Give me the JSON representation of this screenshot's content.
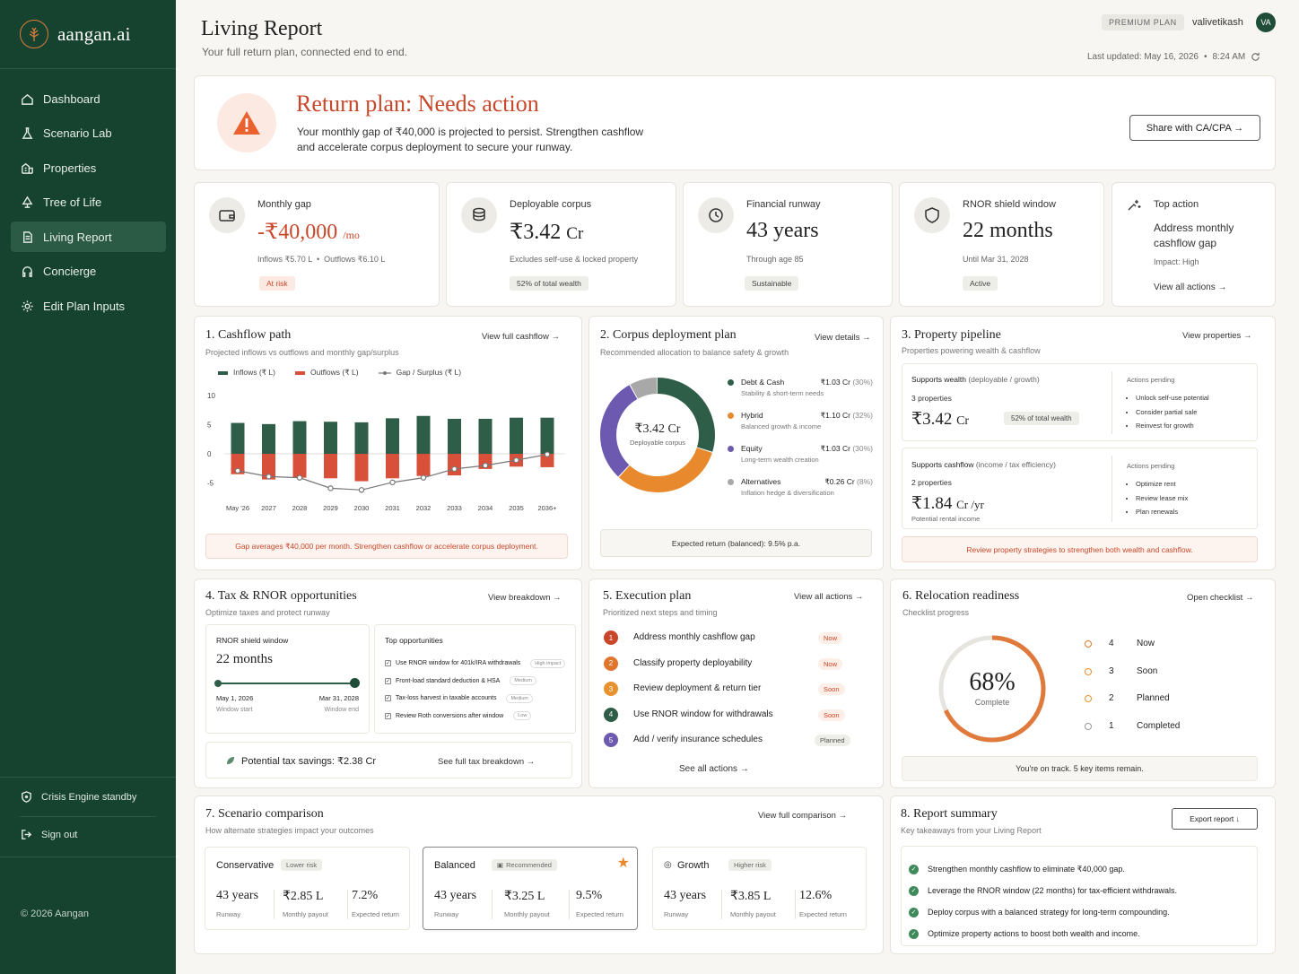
{
  "app": {
    "name": "aangan.ai",
    "copyright": "© 2026 Aangan"
  },
  "nav": [
    {
      "label": "Dashboard",
      "icon": "dashboard-icon"
    },
    {
      "label": "Scenario Lab",
      "icon": "flask-icon"
    },
    {
      "label": "Properties",
      "icon": "building-icon"
    },
    {
      "label": "Tree of Life",
      "icon": "tree-icon"
    },
    {
      "label": "Living Report",
      "icon": "report-icon",
      "active": true
    },
    {
      "label": "Concierge",
      "icon": "headset-icon"
    },
    {
      "label": "Edit Plan Inputs",
      "icon": "gear-icon"
    }
  ],
  "sidebar_bottom": {
    "crisis": "Crisis Engine standby",
    "signout": "Sign out"
  },
  "header": {
    "title": "Living Report",
    "subtitle": "Your full return plan, connected end to end.",
    "plan_badge": "PREMIUM PLAN",
    "username": "valivetikash",
    "avatar": "VA",
    "updated_label": "Last updated: May 16, 2026",
    "updated_sep": "•",
    "updated_time": "8:24 AM"
  },
  "banner": {
    "title": "Return plan: Needs action",
    "text_line1": "Your monthly gap of ₹40,000 is projected to persist. Strengthen cashflow",
    "text_line2": "and accelerate corpus deployment to secure your runway.",
    "share_button": "Share with CA/CPA →"
  },
  "kpis": {
    "gap": {
      "label": "Monthly gap",
      "value": "-₹40,000",
      "unit": "/mo",
      "inflows": "Inflows ₹5.70 L",
      "sep": "•",
      "outflows": "Outflows ₹6.10 L",
      "badge": "At risk"
    },
    "corpus": {
      "label": "Deployable corpus",
      "value": "₹3.42",
      "unit": "Cr",
      "note": "Excludes self-use & locked property",
      "badge": "52% of total wealth"
    },
    "runway": {
      "label": "Financial runway",
      "value": "43 years",
      "note": "Through age 85",
      "badge": "Sustainable"
    },
    "rnor": {
      "label": "RNOR shield window",
      "value": "22 months",
      "note": "Until Mar 31, 2028",
      "badge": "Active"
    },
    "top": {
      "label": "Top action",
      "line1": "Address monthly",
      "line2": "cashflow gap",
      "impact": "Impact: High",
      "link": "View all actions →"
    }
  },
  "cashflow": {
    "title": "1. Cashflow path",
    "subtitle": "Projected inflows vs outflows and monthly gap/surplus",
    "link": "View full cashflow →",
    "legend": [
      "Inflows (₹ L)",
      "Outflows (₹ L)",
      "Gap / Surplus (₹ L)"
    ],
    "note": "Gap averages ₹40,000 per month. Strengthen cashflow or accelerate corpus deployment."
  },
  "chart_data": {
    "type": "bar",
    "categories": [
      "May '26",
      "2027",
      "2028",
      "2029",
      "2030",
      "2031",
      "2032",
      "2033",
      "2034",
      "2035",
      "2036+"
    ],
    "yticks": [
      10,
      5,
      0,
      -5
    ],
    "ylim": [
      -6,
      10
    ],
    "series": [
      {
        "name": "Inflows (₹ L)",
        "type": "bar",
        "color": "#2f5e48",
        "values": [
          5.3,
          5.1,
          5.6,
          5.5,
          5.4,
          6.1,
          6.5,
          6.0,
          6.0,
          6.2,
          6.2
        ]
      },
      {
        "name": "Outflows (₹ L)",
        "type": "bar",
        "color": "#d9503a",
        "values": [
          -3.5,
          -4.4,
          -4.1,
          -4.2,
          -4.7,
          -4.2,
          -3.8,
          -3.7,
          -2.6,
          -2.2,
          -2.3
        ]
      },
      {
        "name": "Gap / Surplus (₹ L)",
        "type": "line",
        "color": "#777777",
        "values": [
          -2.9,
          -3.9,
          -4.1,
          -5.9,
          -6.2,
          -4.9,
          -4.1,
          -2.6,
          -2.0,
          -1.1,
          -0.1
        ]
      }
    ]
  },
  "corpus": {
    "title": "2. Corpus deployment plan",
    "subtitle": "Recommended allocation to balance safety & growth",
    "link": "View details →",
    "center_value": "₹3.42 Cr",
    "center_label": "Deployable corpus",
    "items": [
      {
        "name": "Debt & Cash",
        "value": "₹1.03 Cr",
        "pct": "(30%)",
        "desc": "Stability & short-term needs",
        "color": "#2f5e48"
      },
      {
        "name": "Hybrid",
        "value": "₹1.10 Cr",
        "pct": "(32%)",
        "desc": "Balanced growth & income",
        "color": "#e8892d"
      },
      {
        "name": "Equity",
        "value": "₹1.03 Cr",
        "pct": "(30%)",
        "desc": "Long-term wealth creation",
        "color": "#6d5ab0"
      },
      {
        "name": "Alternatives",
        "value": "₹0.26 Cr",
        "pct": "(8%)",
        "desc": "Inflation hedge & diversification",
        "color": "#a8a8a8"
      }
    ],
    "footer": "Expected return (balanced): 9.5% p.a."
  },
  "property": {
    "title": "3. Property pipeline",
    "subtitle": "Properties powering wealth & cashflow",
    "link": "View properties →",
    "wealth": {
      "title": "Supports wealth",
      "title_sub": "(deployable / growth)",
      "count": "3 properties",
      "value": "₹3.42",
      "unit": "Cr",
      "badge": "52% of total wealth",
      "actions_title": "Actions pending",
      "actions": [
        "Unlock self-use potential",
        "Consider partial sale",
        "Reinvest for growth"
      ]
    },
    "cash": {
      "title": "Supports cashflow",
      "title_sub": "(income / tax efficiency)",
      "count": "2 properties",
      "value": "₹1.84",
      "unit": "Cr /yr",
      "note": "Potential rental income",
      "actions_title": "Actions pending",
      "actions": [
        "Optimize rent",
        "Review lease mix",
        "Plan renewals"
      ]
    },
    "footer": "Review property strategies to strengthen both wealth and cashflow."
  },
  "tax": {
    "title": "4. Tax & RNOR opportunities",
    "subtitle": "Optimize taxes and protect runway",
    "link": "View breakdown →",
    "rnor_label": "RNOR shield window",
    "rnor_value": "22 months",
    "rnor_progress": 1.0,
    "start_date": "May 1, 2026",
    "start_label": "Window start",
    "end_date": "Mar 31, 2028",
    "end_label": "Window end",
    "opps_title": "Top opportunities",
    "opps": [
      {
        "text": "Use RNOR window for 401k/IRA withdrawals",
        "tag": "High impact"
      },
      {
        "text": "Front-load standard deduction & HSA",
        "tag": "Medium"
      },
      {
        "text": "Tax-loss harvest in taxable accounts",
        "tag": "Medium"
      },
      {
        "text": "Review Roth conversions after window",
        "tag": "Low"
      }
    ],
    "savings": "Potential tax savings: ₹2.38 Cr",
    "savings_link": "See full tax breakdown →"
  },
  "execution": {
    "title": "5. Execution plan",
    "subtitle": "Prioritized next steps and timing",
    "link": "View all actions →",
    "steps": [
      {
        "n": "1",
        "text": "Address monthly cashflow gap",
        "tag": "Now",
        "color": "#c8472a"
      },
      {
        "n": "2",
        "text": "Classify property deployability",
        "tag": "Now",
        "color": "#e0752c"
      },
      {
        "n": "3",
        "text": "Review deployment & return tier",
        "tag": "Soon",
        "color": "#e8922f"
      },
      {
        "n": "4",
        "text": "Use RNOR window for withdrawals",
        "tag": "Soon",
        "color": "#2f5e48"
      },
      {
        "n": "5",
        "text": "Add / verify insurance schedules",
        "tag": "Planned",
        "color": "#6d5ab0"
      }
    ],
    "footer_link": "See all actions →"
  },
  "relocation": {
    "title": "6. Relocation readiness",
    "subtitle": "Checklist progress",
    "link": "Open checklist →",
    "percent_label": "68%",
    "percent": 0.68,
    "complete_label": "Complete",
    "legend": [
      {
        "count": "4",
        "label": "Now",
        "color": "#e0752c"
      },
      {
        "count": "3",
        "label": "Soon",
        "color": "#e8892d"
      },
      {
        "count": "2",
        "label": "Planned",
        "color": "#e8922f"
      },
      {
        "count": "1",
        "label": "Completed",
        "color": "#999999"
      }
    ],
    "footer": "You're on track. 5 key items remain."
  },
  "scenarios": {
    "title": "7. Scenario comparison",
    "subtitle": "How alternate strategies impact your outcomes",
    "link": "View full comparison →",
    "items": [
      {
        "name": "Conservative",
        "tag": "Lower risk",
        "runway": "43 years",
        "payout": "₹2.85 L",
        "ret": "7.2%"
      },
      {
        "name": "Balanced",
        "tag": "Recommended",
        "runway": "43 years",
        "payout": "₹3.25 L",
        "ret": "9.5%"
      },
      {
        "name": "Growth",
        "tag": "Higher risk",
        "runway": "43 years",
        "payout": "₹3.85 L",
        "ret": "12.6%"
      }
    ],
    "labels": {
      "runway": "Runway",
      "payout": "Monthly payout",
      "ret": "Expected return"
    }
  },
  "summary": {
    "title": "8. Report summary",
    "subtitle": "Key takeaways from your Living Report",
    "export": "Export report ↓",
    "items": [
      "Strengthen monthly cashflow to eliminate ₹40,000 gap.",
      "Leverage the RNOR window (22 months) for tax-efficient withdrawals.",
      "Deploy corpus with a balanced strategy for long-term compounding.",
      "Optimize property actions to boost both wealth and income."
    ]
  }
}
